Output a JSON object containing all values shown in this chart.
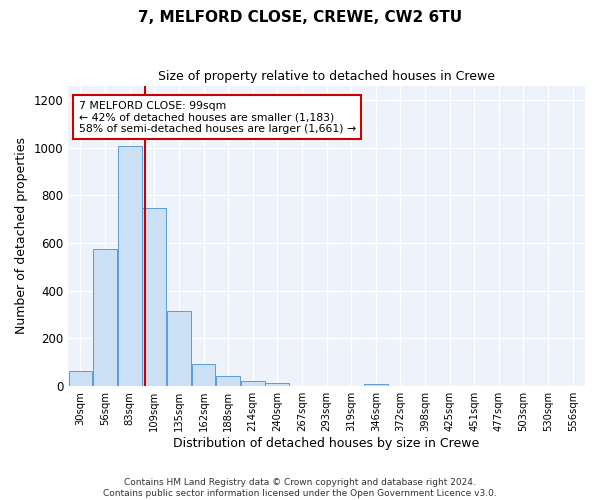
{
  "title": "7, MELFORD CLOSE, CREWE, CW2 6TU",
  "subtitle": "Size of property relative to detached houses in Crewe",
  "xlabel": "Distribution of detached houses by size in Crewe",
  "ylabel": "Number of detached properties",
  "bin_labels": [
    "30sqm",
    "56sqm",
    "83sqm",
    "109sqm",
    "135sqm",
    "162sqm",
    "188sqm",
    "214sqm",
    "240sqm",
    "267sqm",
    "293sqm",
    "319sqm",
    "346sqm",
    "372sqm",
    "398sqm",
    "425sqm",
    "451sqm",
    "477sqm",
    "503sqm",
    "530sqm",
    "556sqm"
  ],
  "bar_values": [
    65,
    575,
    1005,
    745,
    315,
    95,
    42,
    22,
    12,
    0,
    0,
    0,
    10,
    0,
    0,
    0,
    0,
    0,
    0,
    0,
    0
  ],
  "bar_color": "#cce0f5",
  "bar_edge_color": "#5b9bd5",
  "vline_x": 3,
  "vline_color": "#cc0000",
  "ylim": [
    0,
    1260
  ],
  "yticks": [
    0,
    200,
    400,
    600,
    800,
    1000,
    1200
  ],
  "annotation_title": "7 MELFORD CLOSE: 99sqm",
  "annotation_line1": "← 42% of detached houses are smaller (1,183)",
  "annotation_line2": "58% of semi-detached houses are larger (1,661) →",
  "annotation_box_color": "#ffffff",
  "annotation_box_edge_color": "#cc0000",
  "footer_line1": "Contains HM Land Registry data © Crown copyright and database right 2024.",
  "footer_line2": "Contains public sector information licensed under the Open Government Licence v3.0."
}
